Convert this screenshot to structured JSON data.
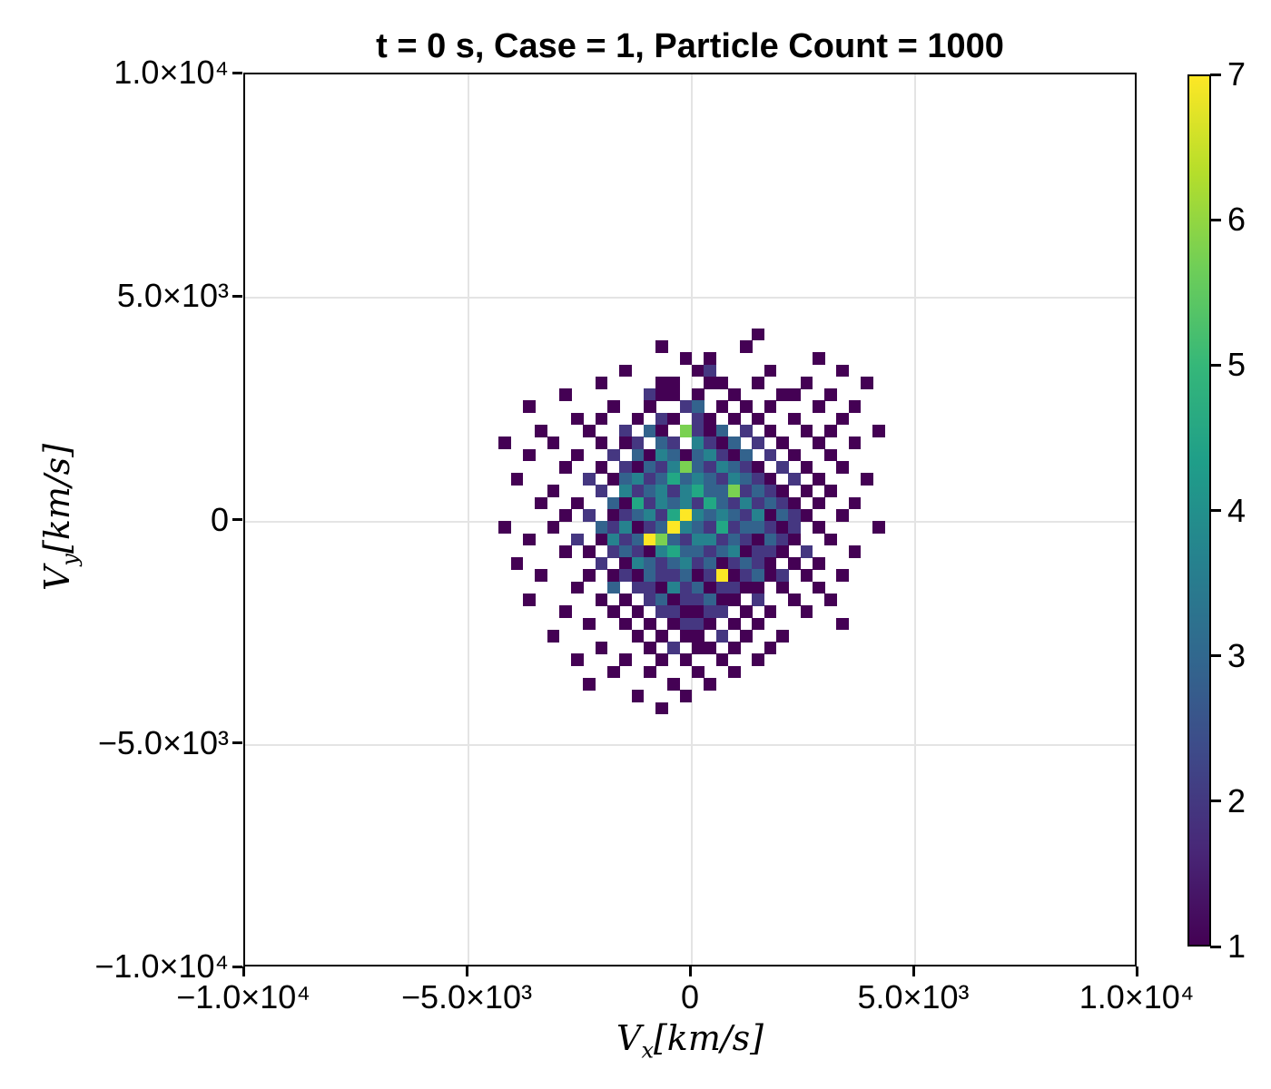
{
  "title": "t = 0 s, Case = 1, Particle Count = 1000",
  "axes": {
    "x": {
      "label": {
        "var": "V",
        "sub": "x",
        "unit": "[km/s]"
      },
      "ticks": [
        {
          "value": -10000,
          "label": "−1.0×10⁴"
        },
        {
          "value": -5000,
          "label": "−5.0×10³"
        },
        {
          "value": 0,
          "label": "0"
        },
        {
          "value": 5000,
          "label": "5.0×10³"
        },
        {
          "value": 10000,
          "label": "1.0×10⁴"
        }
      ],
      "grid_values": [
        -5000,
        0,
        5000
      ]
    },
    "y": {
      "label": {
        "var": "V",
        "sub": "y",
        "unit": "[km/s]"
      },
      "ticks": [
        {
          "value": 10000,
          "label": "1.0×10⁴"
        },
        {
          "value": 5000,
          "label": "5.0×10³"
        },
        {
          "value": 0,
          "label": "0"
        },
        {
          "value": -5000,
          "label": "−5.0×10³"
        },
        {
          "value": -10000,
          "label": "−1.0×10⁴"
        }
      ],
      "grid_values": [
        -5000,
        0,
        5000
      ]
    }
  },
  "colorbar": {
    "min": 1,
    "max": 7,
    "ticks": [
      {
        "value": 7,
        "label": "7"
      },
      {
        "value": 6,
        "label": "6"
      },
      {
        "value": 5,
        "label": "5"
      },
      {
        "value": 4,
        "label": "4"
      },
      {
        "value": 3,
        "label": "3"
      },
      {
        "value": 2,
        "label": "2"
      },
      {
        "value": 1,
        "label": "1"
      }
    ]
  },
  "chart_data": {
    "type": "heatmap",
    "title": "t = 0 s, Case = 1, Particle Count = 1000",
    "xlabel": "Vx [km/s]",
    "ylabel": "Vy [km/s]",
    "xlim": [
      -10000,
      10000
    ],
    "ylim": [
      -10000,
      10000
    ],
    "grid": true,
    "colormap": "viridis",
    "value_range": [
      1,
      7
    ],
    "legend_position": "right-colorbar",
    "bin_size": 270,
    "grid_origin": [
      -4320,
      4320
    ],
    "palette": [
      "#440154",
      "#453781",
      "#33638d",
      "#26828e",
      "#22a884",
      "#7ad151",
      "#fde725"
    ],
    "colorbar_stops": [
      "#440154",
      "#482878",
      "#3e4a89",
      "#31688e",
      "#26828e",
      "#1f9e89",
      "#35b779",
      "#6ece58",
      "#b5de2b",
      "#fde725"
    ],
    "rows": [
      "00000000000000000000010000000000",
      "00000000000001000000100000000000",
      "00000000000000010100000000100000",
      "00000000001000001200001000001000",
      "00000000100001100110010001000010",
      "00000100000021101001000110010000",
      "00100000010010023010101000100100",
      "00000010100102102101010010001000",
      "00010001002031062130201001010001",
      "10001000101203204213020100100100",
      "00100010020314313421302010010000",
      "00000100102132463243210201001000",
      "01000002013423534324321020100010",
      "00001000204234245336232101010000",
      "00010010031524342532423210100100",
      "00000102012342574343241321001000",
      "10001000324123743252332120100001",
      "00100020142376324423213210010000",
      "00000101023214533234122102000100",
      "01000000201432342312321010100000",
      "00010001012132231271231201001000",
      "00000010030221423122110100100000",
      "00100000101023122311020010010000",
      "00000100010102211220101001000000",
      "00000001001010122101010000001000",
      "00001000000101011020100100000000",
      "00000000100010201101001000000000",
      "00000010001001010010010000000000",
      "00000000010010001001000000000000",
      "00000001000000100100000000000000",
      "00000000000100010000000000000000",
      "00000000000001000000000000000000"
    ]
  }
}
